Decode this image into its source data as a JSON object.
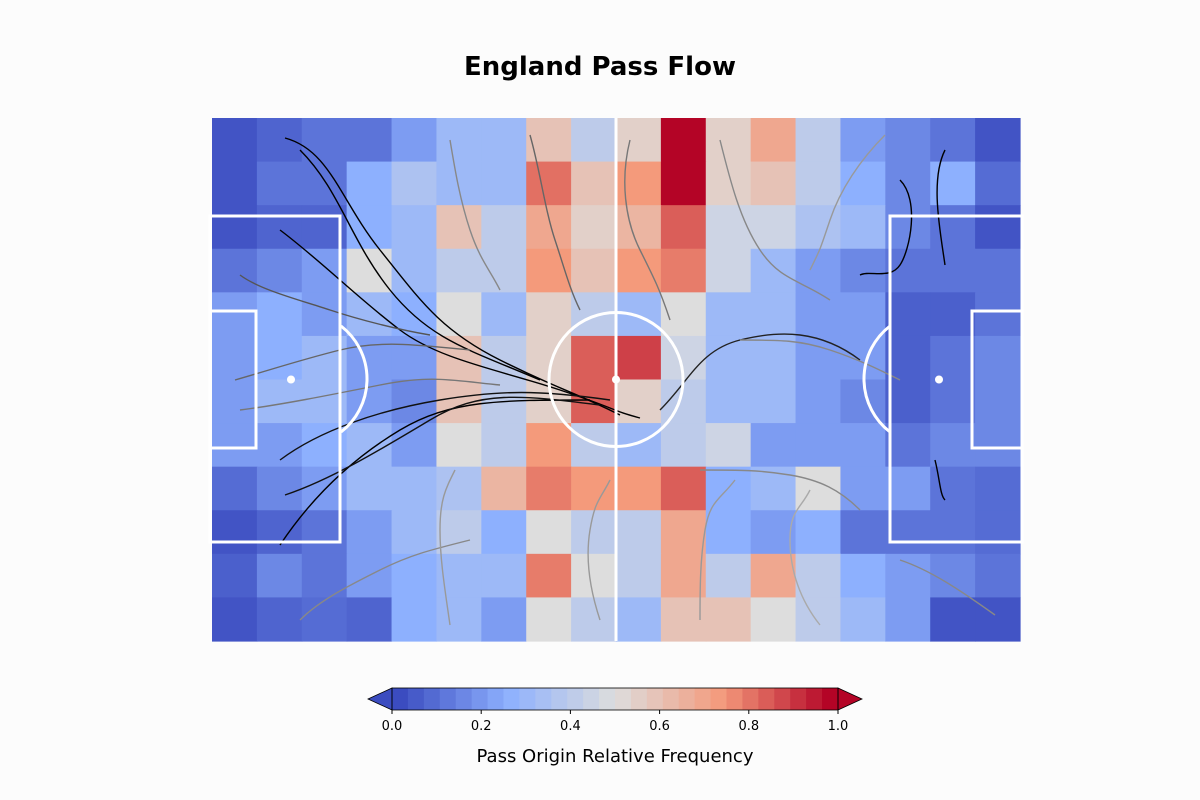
{
  "page": {
    "title": "England Pass Flow"
  },
  "colorbar": {
    "label": "Pass Origin Relative Frequency",
    "ticks": [
      "0.0",
      "0.2",
      "0.4",
      "0.6",
      "0.8",
      "1.0"
    ],
    "min": 0.0,
    "max": 1.0,
    "extend": "both",
    "colormap": "coolwarm"
  },
  "chart_data": {
    "type": "heatmap",
    "title": "England Pass Flow",
    "subtitle": "",
    "colorbar_label": "Pass Origin Relative Frequency",
    "value_range": [
      0.0,
      1.0
    ],
    "grid": {
      "columns": 18,
      "rows": 12
    },
    "values": [
      [
        0.02,
        0.06,
        0.1,
        0.1,
        0.2,
        0.3,
        0.3,
        0.6,
        0.4,
        0.55,
        1.0,
        0.55,
        0.7,
        0.4,
        0.2,
        0.15,
        0.1,
        0.02
      ],
      [
        0.02,
        0.1,
        0.1,
        0.25,
        0.35,
        0.3,
        0.3,
        0.82,
        0.6,
        0.75,
        1.0,
        0.55,
        0.6,
        0.4,
        0.25,
        0.15,
        0.25,
        0.08
      ],
      [
        0.02,
        0.06,
        0.06,
        0.25,
        0.3,
        0.6,
        0.4,
        0.7,
        0.55,
        0.65,
        0.85,
        0.45,
        0.45,
        0.35,
        0.3,
        0.15,
        0.1,
        0.02
      ],
      [
        0.1,
        0.15,
        0.2,
        0.5,
        0.3,
        0.4,
        0.4,
        0.75,
        0.6,
        0.75,
        0.8,
        0.45,
        0.3,
        0.2,
        0.15,
        0.1,
        0.1,
        0.1
      ],
      [
        0.2,
        0.25,
        0.2,
        0.3,
        0.25,
        0.5,
        0.3,
        0.55,
        0.4,
        0.3,
        0.5,
        0.3,
        0.3,
        0.2,
        0.2,
        0.05,
        0.05,
        0.1
      ],
      [
        0.2,
        0.25,
        0.3,
        0.2,
        0.2,
        0.6,
        0.4,
        0.55,
        0.85,
        0.9,
        0.45,
        0.3,
        0.3,
        0.2,
        0.2,
        0.05,
        0.1,
        0.15
      ],
      [
        0.2,
        0.3,
        0.3,
        0.2,
        0.15,
        0.6,
        0.4,
        0.55,
        0.85,
        0.55,
        0.4,
        0.3,
        0.3,
        0.2,
        0.15,
        0.05,
        0.1,
        0.15
      ],
      [
        0.2,
        0.2,
        0.25,
        0.3,
        0.2,
        0.5,
        0.4,
        0.75,
        0.4,
        0.3,
        0.4,
        0.45,
        0.2,
        0.2,
        0.2,
        0.1,
        0.15,
        0.15
      ],
      [
        0.08,
        0.15,
        0.2,
        0.3,
        0.3,
        0.35,
        0.65,
        0.8,
        0.75,
        0.75,
        0.85,
        0.25,
        0.3,
        0.5,
        0.2,
        0.2,
        0.1,
        0.08
      ],
      [
        0.02,
        0.06,
        0.1,
        0.2,
        0.3,
        0.4,
        0.25,
        0.5,
        0.4,
        0.4,
        0.7,
        0.25,
        0.2,
        0.25,
        0.1,
        0.1,
        0.1,
        0.08
      ],
      [
        0.05,
        0.15,
        0.1,
        0.2,
        0.25,
        0.3,
        0.3,
        0.8,
        0.5,
        0.4,
        0.7,
        0.4,
        0.7,
        0.4,
        0.25,
        0.2,
        0.15,
        0.1
      ],
      [
        0.02,
        0.06,
        0.08,
        0.06,
        0.25,
        0.3,
        0.2,
        0.5,
        0.4,
        0.3,
        0.6,
        0.6,
        0.5,
        0.4,
        0.3,
        0.2,
        0.02,
        0.02
      ]
    ],
    "overlay": "streamlines (pass flow direction)",
    "pitch": {
      "orientation": "horizontal",
      "line_color": "#ffffff"
    }
  }
}
